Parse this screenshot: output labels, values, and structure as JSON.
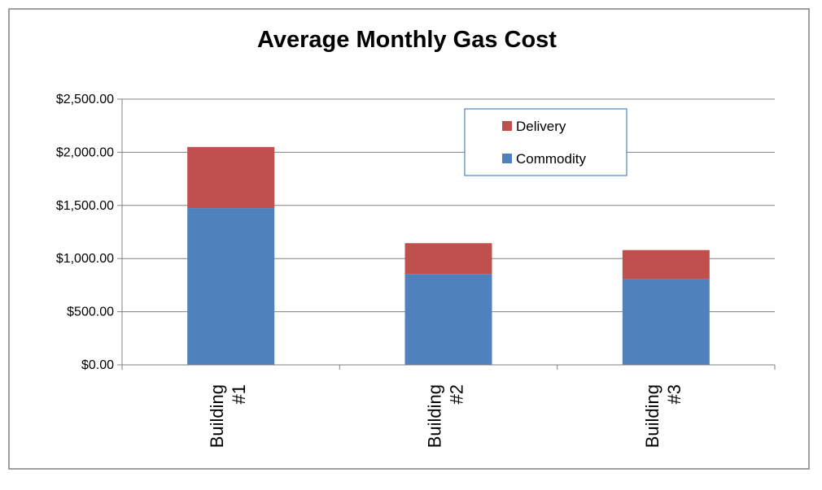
{
  "chart_data": {
    "type": "bar",
    "stacked": true,
    "title": "Average Monthly Gas Cost",
    "xlabel": "",
    "ylabel": "",
    "categories": [
      [
        "Building",
        "#1"
      ],
      [
        "Building",
        "#2"
      ],
      [
        "Building",
        "#3"
      ]
    ],
    "series": [
      {
        "name": "Commodity",
        "values": [
          1475,
          855,
          805
        ],
        "color": "#4F81BD"
      },
      {
        "name": "Delivery",
        "values": [
          575,
          290,
          275
        ],
        "color": "#C0504D"
      }
    ],
    "ylim": [
      0,
      2500
    ],
    "yticks": [
      0,
      500,
      1000,
      1500,
      2000,
      2500
    ],
    "ytick_labels": [
      "$0.00",
      "$500.00",
      "$1,000.00",
      "$1,500.00",
      "$2,000.00",
      "$2,500.00"
    ],
    "grid": true,
    "legend": {
      "placement": "top-right",
      "entries": [
        "Delivery",
        "Commodity"
      ]
    },
    "colors": {
      "frame": "#808080",
      "gridline": "#808080",
      "legend_border": "#4F81BD"
    }
  }
}
